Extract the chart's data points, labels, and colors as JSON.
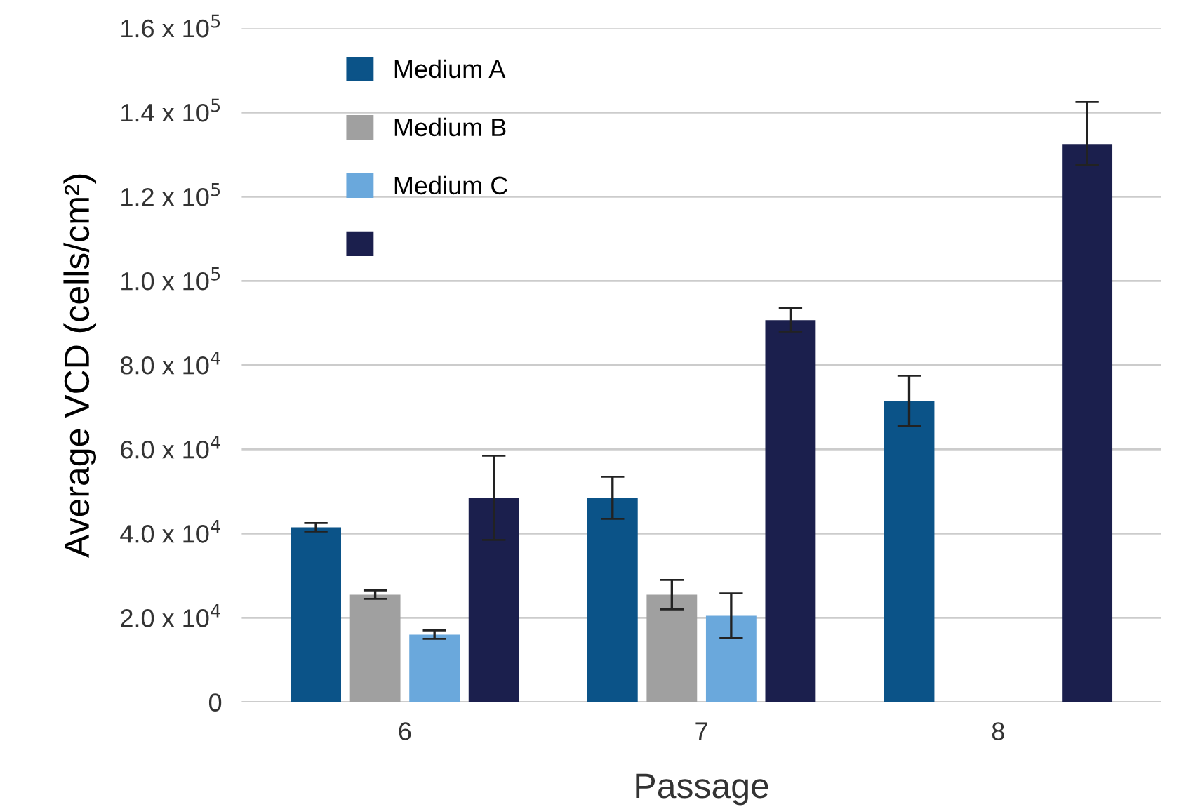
{
  "chart_data": {
    "type": "bar",
    "xlabel": "Passage",
    "ylabel": "Average VCD (cells/cm²)",
    "categories": [
      "6",
      "7",
      "8"
    ],
    "series": [
      {
        "name": "Medium A",
        "color": "#0b5388",
        "values": [
          41500,
          48500,
          71500
        ],
        "errors": [
          1000,
          5000,
          6000
        ]
      },
      {
        "name": "Medium B",
        "color": "#a0a0a0",
        "values": [
          25500,
          25500,
          null
        ],
        "errors": [
          1000,
          3500,
          null
        ]
      },
      {
        "name": "Medium C",
        "color": "#6aa8dc",
        "values": [
          16000,
          20500,
          null
        ],
        "errors": [
          1000,
          5300,
          null
        ]
      },
      {
        "color": "#1b1f4d",
        "values": [
          48500,
          90700,
          132500
        ],
        "errors": [
          10000,
          [
            88000,
            93500
          ],
          [
            127500,
            142500
          ]
        ]
      }
    ],
    "ylim": [
      0,
      160000
    ],
    "yticks": [
      0,
      {
        "value": 20000,
        "label": "2.0 x 10$^{4}$"
      },
      {
        "value": 40000,
        "label": "4.0 x 10$^{4}$"
      },
      {
        "value": 60000,
        "label": "6.0 x 10$^{4}$"
      },
      {
        "value": 80000,
        "label": "8.0 x 10$^{4}$"
      },
      {
        "value": 100000,
        "label": "1.0 x 10$^{5}$"
      },
      {
        "value": 120000,
        "label": "1.2 x 10$^{5}$"
      },
      {
        "value": 140000,
        "label": "1.4 x 10$^{5}$"
      },
      {
        "value": 160000,
        "label": "1.6 x 10$^{5}$"
      }
    ],
    "grid": "y",
    "legend": "top left"
  }
}
